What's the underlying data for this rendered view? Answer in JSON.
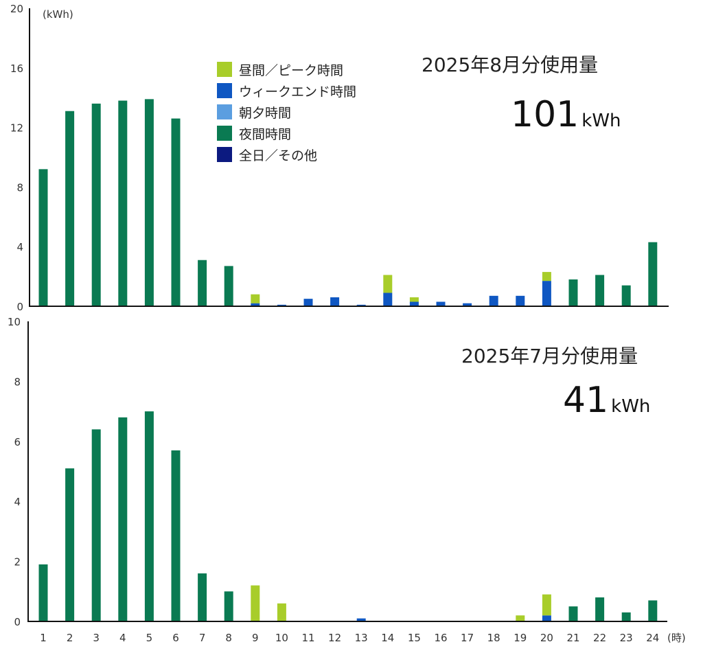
{
  "colors": {
    "peak": "#a8cd2a",
    "weekend": "#0f57c2",
    "morning_evening": "#5b9ee0",
    "night": "#0a7a52",
    "allday": "#0c1a80",
    "axis": "#111111"
  },
  "y_unit": "(kWh)",
  "x_unit": "(時)",
  "legend": [
    {
      "label": "昼間／ピーク時間",
      "color_key": "peak"
    },
    {
      "label": "ウィークエンド時間",
      "color_key": "weekend"
    },
    {
      "label": "朝夕時間",
      "color_key": "morning_evening"
    },
    {
      "label": "夜間時間",
      "color_key": "night"
    },
    {
      "label": "全日／その他",
      "color_key": "allday"
    }
  ],
  "chart_data": [
    {
      "type": "bar",
      "stacked": true,
      "title": "2025年8月分使用量",
      "total_value": "101",
      "total_unit": "kWh",
      "ylim": [
        0,
        20
      ],
      "yticks": [
        0,
        4,
        8,
        12,
        16,
        20
      ],
      "categories": [
        "1",
        "2",
        "3",
        "4",
        "5",
        "6",
        "7",
        "8",
        "9",
        "10",
        "11",
        "12",
        "13",
        "14",
        "15",
        "16",
        "17",
        "18",
        "19",
        "20",
        "21",
        "22",
        "23",
        "24"
      ],
      "series": [
        {
          "key": "night",
          "values": [
            9.2,
            13.1,
            13.6,
            13.8,
            13.9,
            12.6,
            3.1,
            2.7,
            0,
            0,
            0,
            0,
            0,
            0,
            0,
            0,
            0,
            0,
            0,
            0,
            1.8,
            2.1,
            1.4,
            4.3
          ]
        },
        {
          "key": "weekend",
          "values": [
            0,
            0,
            0,
            0,
            0,
            0,
            0,
            0,
            0.2,
            0.1,
            0.5,
            0.6,
            0.1,
            0.9,
            0.3,
            0.3,
            0.2,
            0.7,
            0.7,
            1.7,
            0,
            0,
            0,
            0
          ]
        },
        {
          "key": "peak",
          "values": [
            0,
            0,
            0,
            0,
            0,
            0,
            0,
            0,
            0.6,
            0,
            0,
            0,
            0,
            1.2,
            0.3,
            0,
            0,
            0,
            0,
            0.6,
            0,
            0,
            0,
            0
          ]
        }
      ]
    },
    {
      "type": "bar",
      "stacked": true,
      "title": "2025年7月分使用量",
      "total_value": "41",
      "total_unit": "kWh",
      "ylim": [
        0,
        10
      ],
      "yticks": [
        0,
        2,
        4,
        6,
        8,
        10
      ],
      "categories": [
        "1",
        "2",
        "3",
        "4",
        "5",
        "6",
        "7",
        "8",
        "9",
        "10",
        "11",
        "12",
        "13",
        "14",
        "15",
        "16",
        "17",
        "18",
        "19",
        "20",
        "21",
        "22",
        "23",
        "24"
      ],
      "series": [
        {
          "key": "night",
          "values": [
            1.9,
            5.1,
            6.4,
            6.8,
            7.0,
            5.7,
            1.6,
            1.0,
            0,
            0,
            0,
            0,
            0,
            0,
            0,
            0,
            0,
            0,
            0,
            0,
            0.5,
            0.8,
            0.3,
            0.7
          ]
        },
        {
          "key": "weekend",
          "values": [
            0,
            0,
            0,
            0,
            0,
            0,
            0,
            0,
            0,
            0,
            0,
            0,
            0.1,
            0,
            0,
            0,
            0,
            0,
            0,
            0.2,
            0,
            0,
            0,
            0
          ]
        },
        {
          "key": "peak",
          "values": [
            0,
            0,
            0,
            0,
            0,
            0,
            0,
            0,
            1.2,
            0.6,
            0,
            0,
            0,
            0,
            0,
            0,
            0,
            0,
            0.2,
            0.7,
            0,
            0,
            0,
            0
          ]
        }
      ]
    }
  ]
}
